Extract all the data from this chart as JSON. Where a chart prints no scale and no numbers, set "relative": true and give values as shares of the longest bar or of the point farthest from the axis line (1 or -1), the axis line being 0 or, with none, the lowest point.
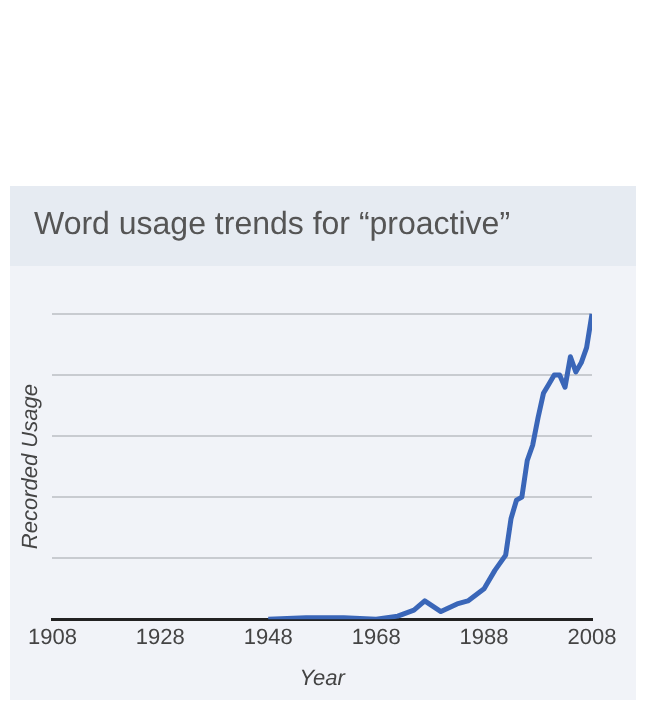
{
  "chart_data": {
    "type": "line",
    "title": "Word usage trends for “proactive”",
    "xlabel": "Year",
    "ylabel": "Recorded Usage",
    "relative": true,
    "grid": "y",
    "marker": "none",
    "xlim": [
      1908,
      2008
    ],
    "xticks": [
      1908,
      1928,
      1948,
      1968,
      1988,
      2008
    ],
    "x": [
      1948,
      1955,
      1962,
      1968,
      1972,
      1975,
      1977,
      1980,
      1983,
      1985,
      1988,
      1990,
      1992,
      1993,
      1994,
      1995,
      1996,
      1997,
      1998,
      1999,
      2000,
      2001,
      2002,
      2003,
      2004,
      2005,
      2006,
      2007,
      2008
    ],
    "series": [
      {
        "color": "#3a66b8",
        "values": [
          0,
          0.005,
          0.005,
          0,
          0.01,
          0.03,
          0.06,
          0.025,
          0.05,
          0.06,
          0.1,
          0.16,
          0.21,
          0.33,
          0.39,
          0.4,
          0.52,
          0.57,
          0.66,
          0.74,
          0.77,
          0.8,
          0.8,
          0.76,
          0.86,
          0.81,
          0.84,
          0.89,
          1
        ]
      }
    ]
  }
}
